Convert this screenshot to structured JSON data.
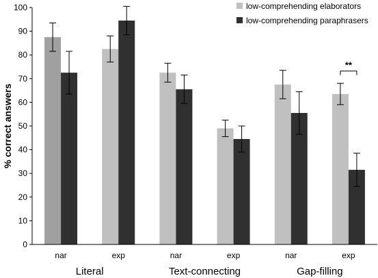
{
  "chart_data": {
    "type": "bar",
    "ylabel": "% correct answers",
    "ylim": [
      0,
      100
    ],
    "yticks": [
      0,
      10,
      20,
      30,
      40,
      50,
      60,
      70,
      80,
      90,
      100
    ],
    "categories": [
      "nar",
      "exp",
      "nar",
      "exp",
      "nar",
      "exp"
    ],
    "groups": [
      {
        "label": "Literal",
        "span": [
          0,
          1
        ]
      },
      {
        "label": "Text-connecting",
        "span": [
          2,
          3
        ]
      },
      {
        "label": "Gap-filling",
        "span": [
          4,
          5
        ]
      }
    ],
    "series": [
      {
        "name": "low-comprehending elaborators",
        "color": "#c0c0c0",
        "values": [
          87.5,
          82.5,
          72.5,
          49,
          67.5,
          63.5
        ],
        "error": [
          6,
          5.5,
          4,
          3.5,
          6,
          4.5
        ]
      },
      {
        "name": "low-comprehending paraphrasers",
        "color": "#303030",
        "values": [
          72.5,
          94.5,
          65.5,
          44.5,
          55.5,
          31.5
        ],
        "error": [
          9,
          6,
          6,
          5.5,
          9,
          7
        ]
      }
    ],
    "first_bar_color": "#a0a0a0",
    "annotations": [
      {
        "text": "**",
        "category_index": 5
      }
    ],
    "legend_position": "top-right",
    "grid": false
  }
}
